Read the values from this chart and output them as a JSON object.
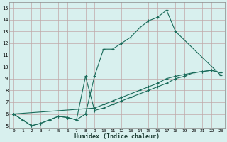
{
  "xlabel": "Humidex (Indice chaleur)",
  "bg_color": "#d8f0ee",
  "line_color": "#1a6b5a",
  "grid_color_minor": "#c8e8e4",
  "grid_color_major": "#c0a8a8",
  "xlim": [
    -0.5,
    23.5
  ],
  "ylim": [
    4.8,
    15.5
  ],
  "xticks": [
    0,
    1,
    2,
    3,
    4,
    5,
    6,
    7,
    8,
    9,
    10,
    11,
    12,
    13,
    14,
    15,
    16,
    17,
    18,
    19,
    20,
    21,
    22,
    23
  ],
  "yticks": [
    5,
    6,
    7,
    8,
    9,
    10,
    11,
    12,
    13,
    14,
    15
  ],
  "line1_x": [
    0,
    1,
    2,
    3,
    4,
    5,
    6,
    7,
    8,
    9,
    10,
    11,
    12,
    13,
    14,
    15,
    16,
    17,
    18,
    23
  ],
  "line1_y": [
    6.0,
    5.5,
    5.0,
    5.2,
    5.5,
    5.8,
    5.7,
    5.5,
    6.0,
    9.2,
    11.5,
    11.5,
    12.0,
    12.5,
    13.3,
    13.9,
    14.2,
    14.8,
    13.0,
    9.3
  ],
  "line2_x": [
    0,
    9,
    10,
    11,
    12,
    13,
    14,
    15,
    16,
    17,
    18,
    19,
    20,
    21,
    22,
    23
  ],
  "line2_y": [
    6.0,
    6.5,
    6.8,
    7.1,
    7.4,
    7.7,
    8.0,
    8.3,
    8.6,
    9.0,
    9.2,
    9.35,
    9.5,
    9.6,
    9.7,
    9.5
  ],
  "line3_x": [
    0,
    1,
    2,
    3,
    4,
    5,
    6,
    7,
    8,
    9,
    10,
    11,
    12,
    13,
    14,
    15,
    16,
    17,
    18,
    19,
    20,
    21,
    22,
    23
  ],
  "line3_y": [
    6.0,
    5.5,
    5.0,
    5.2,
    5.5,
    5.8,
    5.7,
    5.5,
    9.2,
    6.3,
    6.5,
    6.8,
    7.1,
    7.4,
    7.7,
    8.0,
    8.3,
    8.6,
    9.0,
    9.2,
    9.5,
    9.6,
    9.7,
    9.5
  ]
}
